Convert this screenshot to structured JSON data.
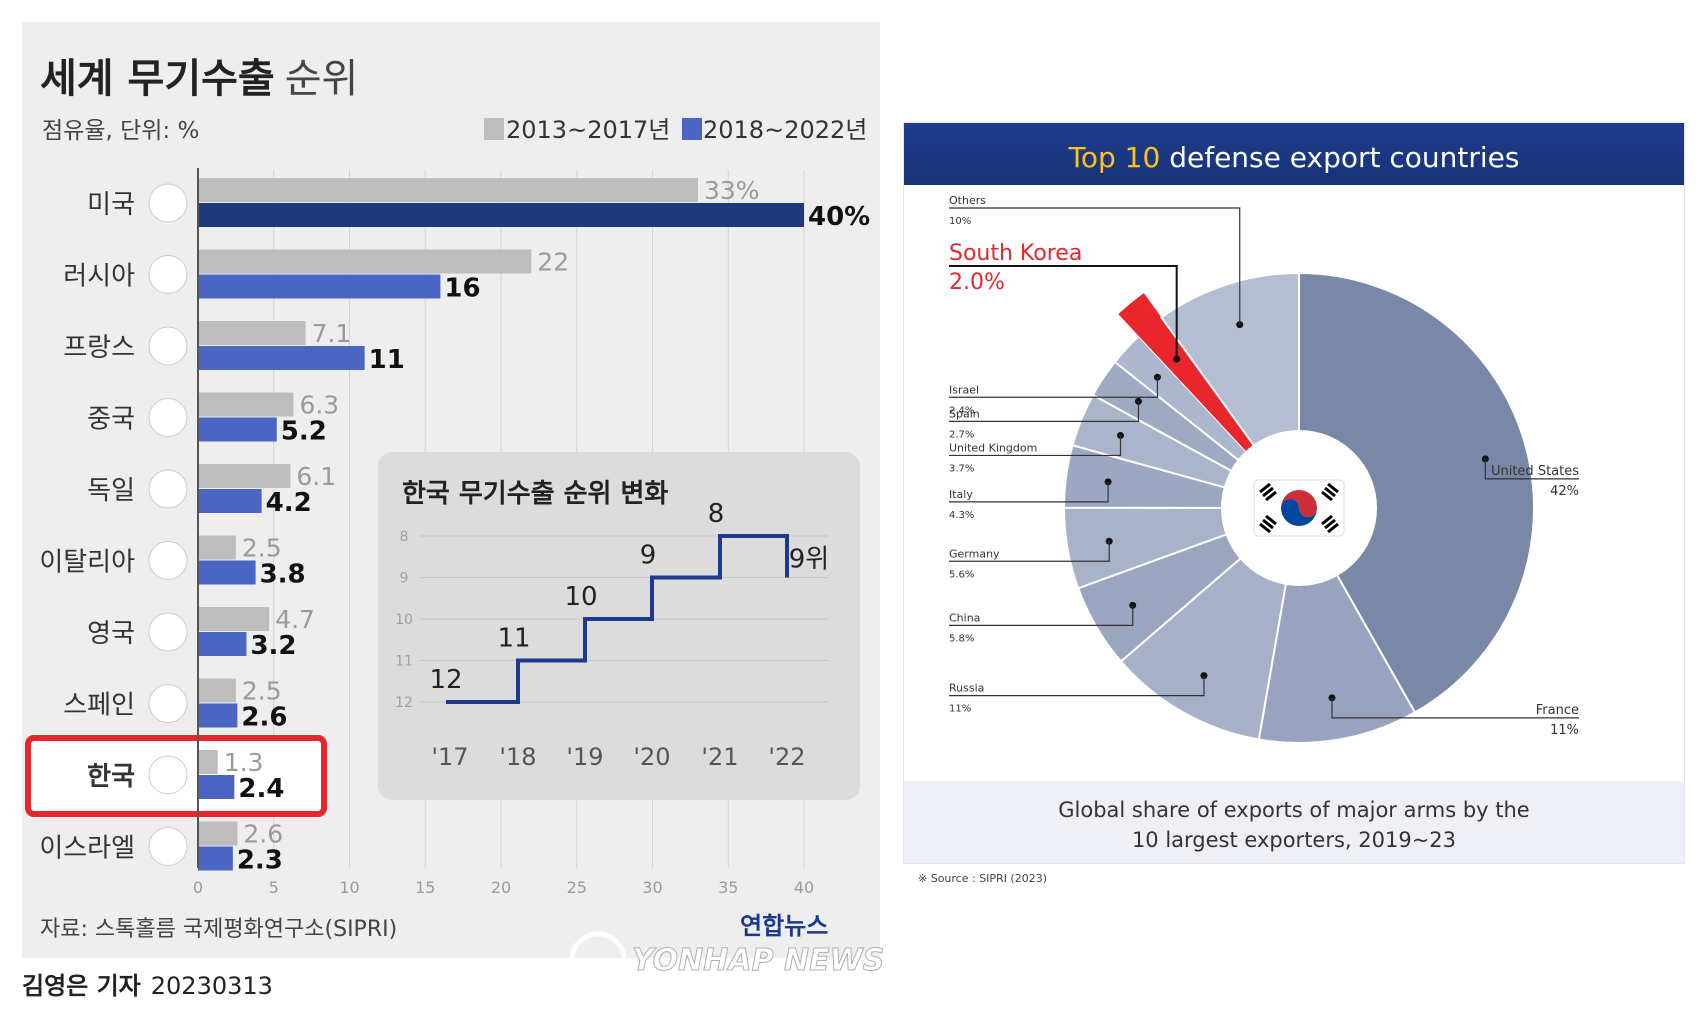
{
  "left_chart": {
    "title_bold": "세계 무기수출",
    "title_light": "순위",
    "subtitle": "점유율, 단위: %",
    "legend": [
      {
        "label": "2013~2017년",
        "color": "#bdbdbd"
      },
      {
        "label": "2018~2022년",
        "color": "#4a66c2"
      }
    ],
    "highlight_color": "#e8262b",
    "source": "자료: 스톡홀름 국제평화연구소(SIPRI)",
    "credit": "김영은 기자",
    "date": "20230313",
    "logo_korean": "연합뉴스",
    "logo_english": "YONHAP NEWS"
  },
  "inset": {
    "title": "한국 무기수출 순위 변화",
    "last_suffix": "위"
  },
  "right_chart": {
    "title_accent": "Top 10",
    "title_rest": "defense export countries",
    "caption": "Global share of exports of major arms by the\n10 largest exporters, 2019~23",
    "source": "※ Source : SIPRI (2023)"
  },
  "chart_data": [
    {
      "type": "bar",
      "orientation": "horizontal",
      "title": "세계 무기수출 순위",
      "subtitle": "점유율, 단위: %",
      "categories": [
        "미국",
        "러시아",
        "프랑스",
        "중국",
        "독일",
        "이탈리아",
        "영국",
        "스페인",
        "한국",
        "이스라엘"
      ],
      "series": [
        {
          "name": "2013~2017년",
          "values": [
            33,
            22,
            7.1,
            6.3,
            6.1,
            2.5,
            4.7,
            2.5,
            1.3,
            2.6
          ],
          "labels": [
            "33%",
            "22",
            "7.1",
            "6.3",
            "6.1",
            "2.5",
            "4.7",
            "2.5",
            "1.3",
            "2.6"
          ],
          "color": "#bdbdbd"
        },
        {
          "name": "2018~2022년",
          "values": [
            40,
            16,
            11,
            5.2,
            4.2,
            3.8,
            3.2,
            2.6,
            2.4,
            2.3
          ],
          "labels": [
            "40%",
            "16",
            "11",
            "5.2",
            "4.2",
            "3.8",
            "3.2",
            "2.6",
            "2.4",
            "2.3"
          ],
          "color": "#4a66c2"
        }
      ],
      "xlim": [
        0,
        40
      ],
      "xticks": [
        0,
        5,
        10,
        15,
        20,
        25,
        30,
        35,
        40
      ],
      "grid": true,
      "legend_position": "top-right",
      "highlight_category": "한국"
    },
    {
      "type": "line",
      "step": true,
      "title": "한국 무기수출 순위 변화",
      "x": [
        "'17",
        "'18",
        "'19",
        "'20",
        "'21",
        "'22"
      ],
      "values": [
        12,
        11,
        10,
        9,
        8,
        9
      ],
      "labels": [
        "12",
        "11",
        "10",
        "9",
        "8",
        "9위"
      ],
      "yticks": [
        8,
        9,
        10,
        11,
        12
      ],
      "ylim": [
        12,
        8
      ],
      "y_inverted": true,
      "color": "#1f3a8c"
    },
    {
      "type": "pie",
      "donut": true,
      "title": "Top 10 defense export countries",
      "caption": "Global share of exports of major arms by the 10 largest exporters, 2019~23",
      "slices": [
        {
          "label": "United States",
          "value": 42,
          "display": "42%",
          "color": "#7a88a8"
        },
        {
          "label": "France",
          "value": 11,
          "display": "11%",
          "color": "#98a4bf"
        },
        {
          "label": "Russia",
          "value": 11,
          "display": "11%",
          "color": "#a6b0c8"
        },
        {
          "label": "China",
          "value": 5.8,
          "display": "5.8%",
          "color": "#9aa5bf"
        },
        {
          "label": "Germany",
          "value": 5.6,
          "display": "5.6%",
          "color": "#a8b2c9"
        },
        {
          "label": "Italy",
          "value": 4.3,
          "display": "4.3%",
          "color": "#9ca7c1"
        },
        {
          "label": "United Kingdom",
          "value": 3.7,
          "display": "3.7%",
          "color": "#aab4cb"
        },
        {
          "label": "Spain",
          "value": 2.7,
          "display": "2.7%",
          "color": "#9ea9c2"
        },
        {
          "label": "Israel",
          "value": 2.4,
          "display": "2.4%",
          "color": "#acb6cc"
        },
        {
          "label": "South Korea",
          "value": 2.0,
          "display": "2.0%",
          "color": "#e8262b"
        },
        {
          "label": "Others",
          "value": 10,
          "display": "10%",
          "color": "#b4bdd1"
        }
      ],
      "highlight": "South Korea"
    }
  ]
}
